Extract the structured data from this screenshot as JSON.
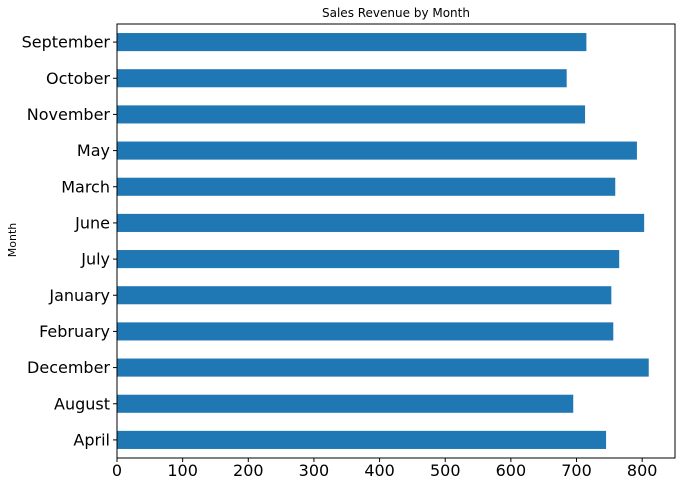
{
  "chart_data": {
    "type": "bar",
    "orientation": "horizontal",
    "title": "Sales Revenue by Month",
    "xlabel": "",
    "ylabel": "Month",
    "categories": [
      "April",
      "August",
      "December",
      "February",
      "January",
      "July",
      "June",
      "March",
      "May",
      "November",
      "October",
      "September"
    ],
    "values": [
      745,
      695,
      810,
      756,
      753,
      765,
      803,
      759,
      792,
      713,
      685,
      715
    ],
    "xlim": [
      0,
      850
    ],
    "xticks": [
      0,
      100,
      200,
      300,
      400,
      500,
      600,
      700,
      800
    ],
    "grid": false,
    "bar_color": "#1f77b4"
  }
}
